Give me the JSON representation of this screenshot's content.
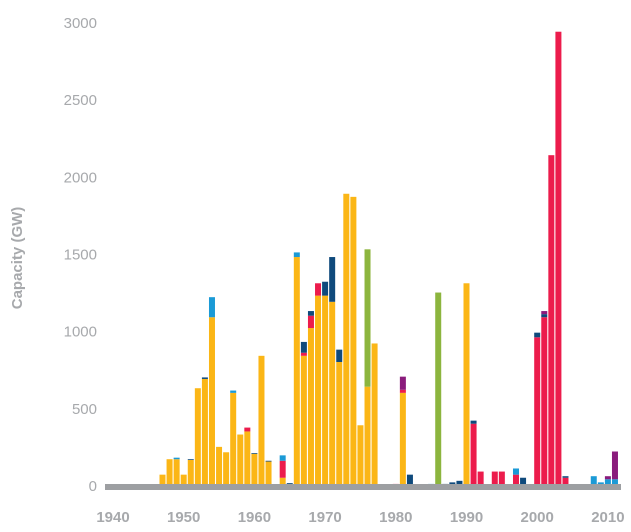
{
  "chart_data": {
    "type": "stacked_bar",
    "y_label": "Capacity (GW)",
    "categories": [
      "1940",
      null,
      null,
      null,
      null,
      null,
      null,
      null,
      null,
      null,
      "1950",
      null,
      null,
      null,
      null,
      null,
      null,
      null,
      null,
      null,
      "1960",
      null,
      null,
      null,
      null,
      null,
      null,
      null,
      null,
      null,
      "1970",
      null,
      null,
      null,
      null,
      null,
      null,
      null,
      null,
      null,
      "1980",
      null,
      null,
      null,
      null,
      null,
      null,
      null,
      null,
      null,
      "1990",
      null,
      null,
      null,
      null,
      null,
      null,
      null,
      null,
      null,
      "2000",
      null,
      null,
      null,
      null,
      null,
      null,
      null,
      null,
      null,
      "2010",
      null
    ],
    "series": [
      {
        "color": "#fbb616",
        "values": [
          0,
          0,
          0,
          0,
          0,
          0,
          0,
          80,
          180,
          180,
          80,
          175,
          640,
          700,
          1100,
          260,
          225,
          610,
          340,
          360,
          215,
          850,
          165,
          0,
          60,
          0,
          1490,
          850,
          1030,
          1240,
          1240,
          1200,
          810,
          1900,
          1880,
          400,
          650,
          930,
          0,
          0,
          0,
          610,
          0,
          0,
          0,
          0,
          0,
          0,
          0,
          0,
          1320,
          0,
          0,
          0,
          0,
          0,
          0,
          0,
          0,
          0,
          0,
          0,
          0,
          0,
          0,
          0,
          0,
          0,
          0,
          0,
          0,
          0
        ]
      },
      {
        "color": "#ec1c4c",
        "values": [
          0,
          0,
          0,
          0,
          0,
          0,
          0,
          0,
          0,
          0,
          0,
          0,
          0,
          0,
          0,
          0,
          0,
          0,
          0,
          25,
          0,
          0,
          0,
          0,
          110,
          0,
          0,
          20,
          80,
          80,
          0,
          0,
          0,
          0,
          0,
          0,
          0,
          0,
          0,
          0,
          20,
          20,
          0,
          0,
          0,
          0,
          0,
          0,
          0,
          0,
          0,
          410,
          100,
          0,
          100,
          100,
          0,
          80,
          0,
          0,
          970,
          1100,
          2150,
          2950,
          60,
          0,
          0,
          0,
          0,
          0,
          0,
          0
        ]
      },
      {
        "color": "#0f4a7c",
        "values": [
          0,
          0,
          0,
          0,
          0,
          0,
          0,
          0,
          0,
          0,
          0,
          5,
          0,
          10,
          0,
          0,
          0,
          0,
          0,
          0,
          5,
          0,
          5,
          0,
          0,
          25,
          0,
          70,
          30,
          0,
          90,
          290,
          80,
          0,
          0,
          0,
          0,
          0,
          0,
          0,
          0,
          0,
          80,
          0,
          0,
          0,
          0,
          20,
          30,
          40,
          0,
          20,
          0,
          0,
          0,
          0,
          0,
          0,
          60,
          0,
          30,
          20,
          0,
          0,
          10,
          0,
          0,
          0,
          0,
          0,
          0,
          0
        ]
      },
      {
        "color": "#1b9ad6",
        "values": [
          0,
          0,
          0,
          0,
          0,
          0,
          0,
          0,
          0,
          10,
          0,
          0,
          0,
          0,
          130,
          0,
          0,
          15,
          0,
          0,
          0,
          0,
          0,
          0,
          35,
          0,
          30,
          0,
          0,
          0,
          0,
          0,
          0,
          0,
          0,
          0,
          0,
          0,
          0,
          0,
          0,
          0,
          0,
          0,
          0,
          20,
          0,
          0,
          0,
          0,
          0,
          0,
          0,
          0,
          0,
          0,
          0,
          40,
          0,
          0,
          0,
          0,
          0,
          0,
          0,
          0,
          0,
          0,
          70,
          30,
          50,
          50
        ]
      },
      {
        "color": "#8cb53e",
        "values": [
          0,
          0,
          0,
          0,
          0,
          0,
          0,
          0,
          0,
          0,
          0,
          0,
          0,
          0,
          0,
          0,
          0,
          0,
          0,
          0,
          0,
          0,
          0,
          0,
          0,
          0,
          0,
          0,
          0,
          0,
          0,
          0,
          0,
          0,
          0,
          0,
          890,
          0,
          0,
          0,
          0,
          0,
          0,
          0,
          0,
          0,
          1260,
          0,
          0,
          0,
          0,
          0,
          0,
          0,
          0,
          0,
          0,
          0,
          0,
          0,
          0,
          0,
          0,
          0,
          0,
          0,
          0,
          0,
          0,
          0,
          0,
          0
        ]
      },
      {
        "color": "#8a1c7c",
        "values": [
          0,
          0,
          0,
          0,
          0,
          0,
          0,
          0,
          0,
          0,
          0,
          0,
          0,
          0,
          0,
          0,
          0,
          0,
          0,
          0,
          0,
          0,
          0,
          0,
          0,
          0,
          0,
          0,
          0,
          0,
          0,
          0,
          0,
          0,
          0,
          0,
          0,
          0,
          0,
          0,
          0,
          85,
          0,
          0,
          0,
          0,
          0,
          0,
          0,
          0,
          0,
          0,
          0,
          0,
          0,
          0,
          0,
          0,
          0,
          0,
          0,
          20,
          0,
          0,
          0,
          0,
          0,
          0,
          0,
          0,
          20,
          180
        ]
      }
    ],
    "ylim": [
      0,
      3000
    ],
    "yticks": [
      0,
      500,
      1000,
      1500,
      2000,
      2500,
      3000
    ],
    "grid": false
  }
}
